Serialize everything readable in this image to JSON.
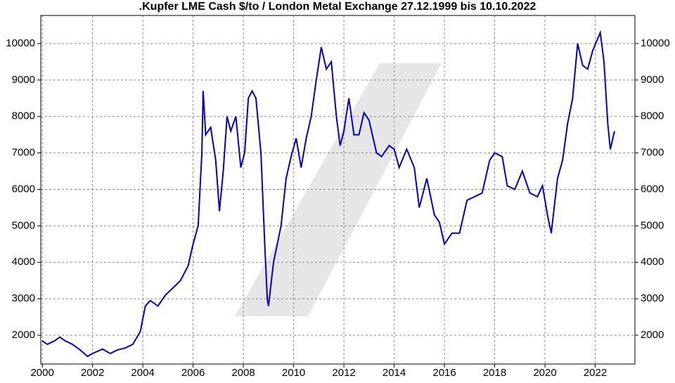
{
  "chart_data": {
    "type": "line",
    "title": ".Kupfer LME Cash $/to / London Metal Exchange 27.12.1999 bis 10.10.2022",
    "x": [
      1999.99,
      2000.2,
      2000.5,
      2000.7,
      2000.9,
      2001.2,
      2001.5,
      2001.8,
      2002.0,
      2002.4,
      2002.7,
      2003.0,
      2003.3,
      2003.6,
      2003.9,
      2004.1,
      2004.3,
      2004.6,
      2004.9,
      2005.2,
      2005.5,
      2005.8,
      2006.0,
      2006.2,
      2006.35,
      2006.4,
      2006.5,
      2006.7,
      2006.9,
      2007.05,
      2007.2,
      2007.35,
      2007.5,
      2007.7,
      2007.9,
      2008.05,
      2008.2,
      2008.35,
      2008.5,
      2008.7,
      2008.85,
      2008.95,
      2009.0,
      2009.2,
      2009.5,
      2009.7,
      2009.9,
      2010.1,
      2010.3,
      2010.5,
      2010.7,
      2010.9,
      2011.1,
      2011.3,
      2011.5,
      2011.7,
      2011.85,
      2012.0,
      2012.2,
      2012.4,
      2012.6,
      2012.8,
      2013.0,
      2013.3,
      2013.5,
      2013.8,
      2014.0,
      2014.2,
      2014.5,
      2014.8,
      2015.0,
      2015.3,
      2015.6,
      2015.8,
      2016.0,
      2016.3,
      2016.6,
      2016.9,
      2017.2,
      2017.5,
      2017.8,
      2018.0,
      2018.3,
      2018.5,
      2018.8,
      2019.1,
      2019.4,
      2019.7,
      2019.9,
      2020.1,
      2020.25,
      2020.5,
      2020.7,
      2020.9,
      2021.1,
      2021.3,
      2021.5,
      2021.7,
      2021.9,
      2022.2,
      2022.35,
      2022.5,
      2022.6,
      2022.77
    ],
    "series": [
      {
        "name": "Kupfer",
        "color": "#0000cc",
        "values": [
          1850,
          1750,
          1850,
          1950,
          1850,
          1750,
          1600,
          1420,
          1500,
          1620,
          1500,
          1600,
          1650,
          1750,
          2100,
          2800,
          2950,
          2800,
          3100,
          3300,
          3500,
          3900,
          4500,
          5000,
          7000,
          8700,
          7500,
          7700,
          6800,
          5400,
          6500,
          8000,
          7600,
          8000,
          6600,
          7000,
          8500,
          8700,
          8500,
          7000,
          4500,
          3000,
          2800,
          4000,
          5000,
          6300,
          6900,
          7400,
          6600,
          7400,
          8000,
          9000,
          9900,
          9300,
          9500,
          8000,
          7200,
          7600,
          8500,
          7500,
          7500,
          8100,
          7900,
          7000,
          6900,
          7200,
          7100,
          6600,
          7100,
          6600,
          5500,
          6300,
          5300,
          5100,
          4500,
          4800,
          4800,
          5700,
          5800,
          5900,
          6800,
          7000,
          6900,
          6100,
          6000,
          6500,
          5900,
          5800,
          6100,
          5300,
          4800,
          6300,
          6800,
          7800,
          8500,
          10000,
          9400,
          9300,
          9800,
          10300,
          9500,
          7800,
          7100,
          7600
        ]
      }
    ],
    "xlim": [
      1999.94,
      2023.58
    ],
    "xticks": [
      2000,
      2002,
      2004,
      2006,
      2008,
      2010,
      2012,
      2014,
      2016,
      2018,
      2020,
      2022
    ],
    "ylim": [
      1210,
      10770
    ],
    "yticks": [
      2000,
      3000,
      4000,
      5000,
      6000,
      7000,
      8000,
      9000,
      10000
    ],
    "grid": true
  }
}
